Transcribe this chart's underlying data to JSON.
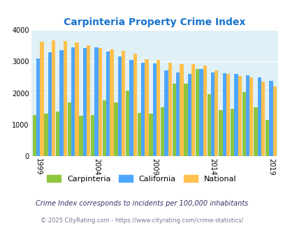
{
  "title": "Carpinteria Property Crime Index",
  "title_color": "#1874CD",
  "years": [
    1999,
    2000,
    2001,
    2002,
    2003,
    2004,
    2005,
    2006,
    2007,
    2008,
    2009,
    2010,
    2011,
    2012,
    2013,
    2014,
    2015,
    2016,
    2017,
    2018,
    2019
  ],
  "carpinteria": [
    1300,
    1350,
    1420,
    1700,
    1280,
    1300,
    1780,
    1700,
    2090,
    1380,
    1350,
    1560,
    2300,
    2290,
    2760,
    1980,
    1460,
    1500,
    2030,
    1560,
    1160
  ],
  "california": [
    3100,
    3300,
    3350,
    3440,
    3430,
    3450,
    3320,
    3150,
    3060,
    2960,
    2950,
    2720,
    2650,
    2600,
    2760,
    2650,
    2640,
    2620,
    2560,
    2510,
    2380
  ],
  "national": [
    3630,
    3660,
    3650,
    3600,
    3510,
    3430,
    3380,
    3330,
    3240,
    3080,
    3050,
    2960,
    2920,
    2910,
    2880,
    2720,
    2600,
    2550,
    2490,
    2360,
    2220
  ],
  "color_carpinteria": "#8DC63F",
  "color_california": "#4DA6FF",
  "color_national": "#FFC04D",
  "background_color": "#DFF0F7",
  "ylim": [
    0,
    4000
  ],
  "ylabel_ticks": [
    0,
    1000,
    2000,
    3000,
    4000
  ],
  "xlabel_ticks": [
    1999,
    2004,
    2009,
    2014,
    2019
  ],
  "footnote1": "Crime Index corresponds to incidents per 100,000 inhabitants",
  "footnote2": "© 2025 CityRating.com - https://www.cityrating.com/crime-statistics/",
  "footnote_color1": "#333366",
  "footnote_color2": "#777799"
}
